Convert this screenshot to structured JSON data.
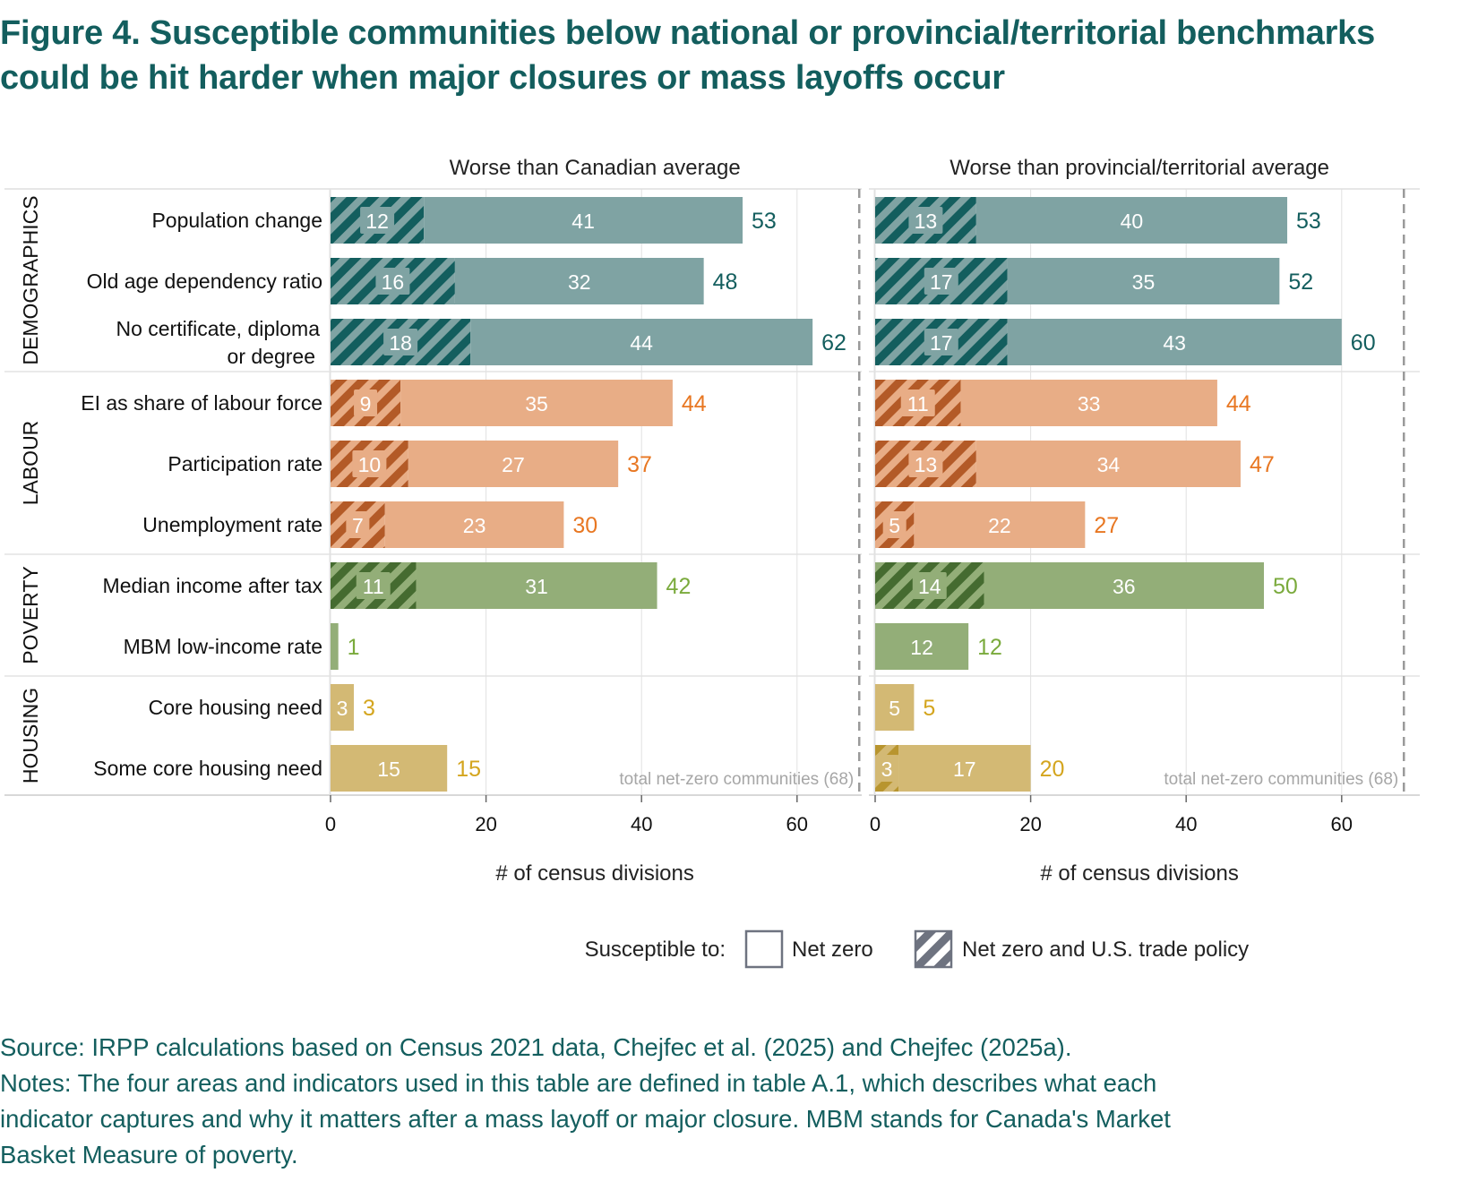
{
  "title": {
    "line1": "Figure 4. Susceptible communities below national or provincial/territorial benchmarks",
    "line2": "could be hit harder when major closures or mass layoffs occur"
  },
  "colors": {
    "demographics": {
      "dark": "#135e5e",
      "light": "#7fa3a3",
      "total": "#135e5e"
    },
    "labour": {
      "dark": "#b35a27",
      "light": "#e8ad86",
      "total": "#e87722"
    },
    "poverty": {
      "dark": "#456b30",
      "light": "#93ae78",
      "total": "#7aaa3c"
    },
    "housing": {
      "dark": "#b8952f",
      "light": "#d3b974",
      "total": "#d4a51e"
    }
  },
  "chart_data": {
    "type": "bar",
    "orientation": "horizontal",
    "stacked": true,
    "xlabel": "# of census divisions",
    "xlim": [
      0,
      68
    ],
    "xticks": [
      0,
      20,
      40,
      60
    ],
    "grid": true,
    "reference_line": {
      "value": 68,
      "label": "total net-zero communities (68)",
      "style": "dashed"
    },
    "groups": [
      {
        "name": "DEMOGRAPHICS",
        "key": "demographics",
        "indicators": [
          "Population change",
          "Old age dependency ratio",
          "No certificate, diploma|or degree"
        ]
      },
      {
        "name": "LABOUR",
        "key": "labour",
        "indicators": [
          "EI as share of labour force",
          "Participation rate",
          "Unemployment rate"
        ]
      },
      {
        "name": "POVERTY",
        "key": "poverty",
        "indicators": [
          "Median income after tax",
          "MBM low-income rate"
        ]
      },
      {
        "name": "HOUSING",
        "key": "housing",
        "indicators": [
          "Core housing need",
          "Some core housing need"
        ]
      }
    ],
    "panels": [
      {
        "title": "Worse than Canadian average",
        "series": [
          {
            "name": "Net zero and U.S. trade policy",
            "values": [
              12,
              16,
              18,
              9,
              10,
              7,
              11,
              0,
              0,
              0
            ]
          },
          {
            "name": "Net zero",
            "values": [
              41,
              32,
              44,
              35,
              27,
              23,
              31,
              1,
              3,
              15
            ]
          }
        ],
        "totals": [
          53,
          48,
          62,
          44,
          37,
          30,
          42,
          1,
          3,
          15
        ]
      },
      {
        "title": "Worse than provincial/territorial average",
        "series": [
          {
            "name": "Net zero and U.S. trade policy",
            "values": [
              13,
              17,
              17,
              11,
              13,
              5,
              14,
              0,
              0,
              3
            ]
          },
          {
            "name": "Net zero",
            "values": [
              40,
              35,
              43,
              33,
              34,
              22,
              36,
              12,
              5,
              17
            ]
          }
        ],
        "totals": [
          53,
          52,
          60,
          44,
          47,
          27,
          50,
          12,
          5,
          20
        ]
      }
    ],
    "legend": {
      "label": "Susceptible to:",
      "placement": "bottom",
      "items": [
        {
          "name": "Net zero",
          "pattern": "solid"
        },
        {
          "name": "Net zero and U.S. trade policy",
          "pattern": "hatched"
        }
      ]
    }
  },
  "footer": {
    "source": "Source: IRPP calculations based on Census 2021 data, Chejfec et al. (2025) and Chejfec (2025a).",
    "notes_line1": "Notes: The four areas and indicators used in this table are defined in table A.1, which describes what each",
    "notes_line2": "indicator captures and why it matters after a mass layoff or major closure. MBM stands for Canada's Market",
    "notes_line3": "Basket Measure of poverty."
  }
}
